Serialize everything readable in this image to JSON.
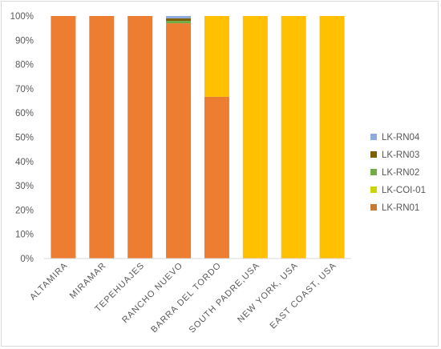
{
  "chart_data": {
    "type": "bar",
    "stacked": true,
    "percent": true,
    "categories": [
      "ALTAMIRA",
      "MIRAMAR",
      "TEPEHUAJES",
      "RANCHO NUEVO",
      "BARRA DEL TORDO",
      "SOUTH PADRE,USA",
      "NEW YORK, USA",
      "EAST COAST, USA"
    ],
    "series": [
      {
        "name": "LK-RN01",
        "color": "#ed7d31",
        "values": [
          100,
          100,
          100,
          97,
          66.7,
          0,
          0,
          0
        ]
      },
      {
        "name": "LK-COI-01",
        "color": "#ffc000",
        "values": [
          0,
          0,
          0,
          0,
          33.3,
          100,
          100,
          100
        ]
      },
      {
        "name": "LK-RN02",
        "color": "#70ad47",
        "values": [
          0,
          0,
          0,
          1,
          0,
          0,
          0,
          0
        ]
      },
      {
        "name": "LK-RN03",
        "color": "#7f6000",
        "values": [
          0,
          0,
          0,
          1,
          0,
          0,
          0,
          0
        ]
      },
      {
        "name": "LK-RN04",
        "color": "#8faadc",
        "values": [
          0,
          0,
          0,
          1,
          0,
          0,
          0,
          0
        ]
      }
    ],
    "legend_series_order": [
      "LK-RN04",
      "LK-RN03",
      "LK-RN02",
      "LK-COI-01",
      "LK-RN01"
    ],
    "legend_swatch_colors": {
      "LK-RN04": "#8faadc",
      "LK-RN03": "#7f6000",
      "LK-RN02": "#70ad47",
      "LK-COI-01": "#c9d400",
      "LK-RN01": "#c87a33"
    },
    "y_ticks": [
      "0%",
      "10%",
      "20%",
      "30%",
      "40%",
      "50%",
      "60%",
      "70%",
      "80%",
      "90%",
      "100%"
    ],
    "ylim": [
      0,
      100
    ],
    "grid": false,
    "legend_position": "right"
  }
}
